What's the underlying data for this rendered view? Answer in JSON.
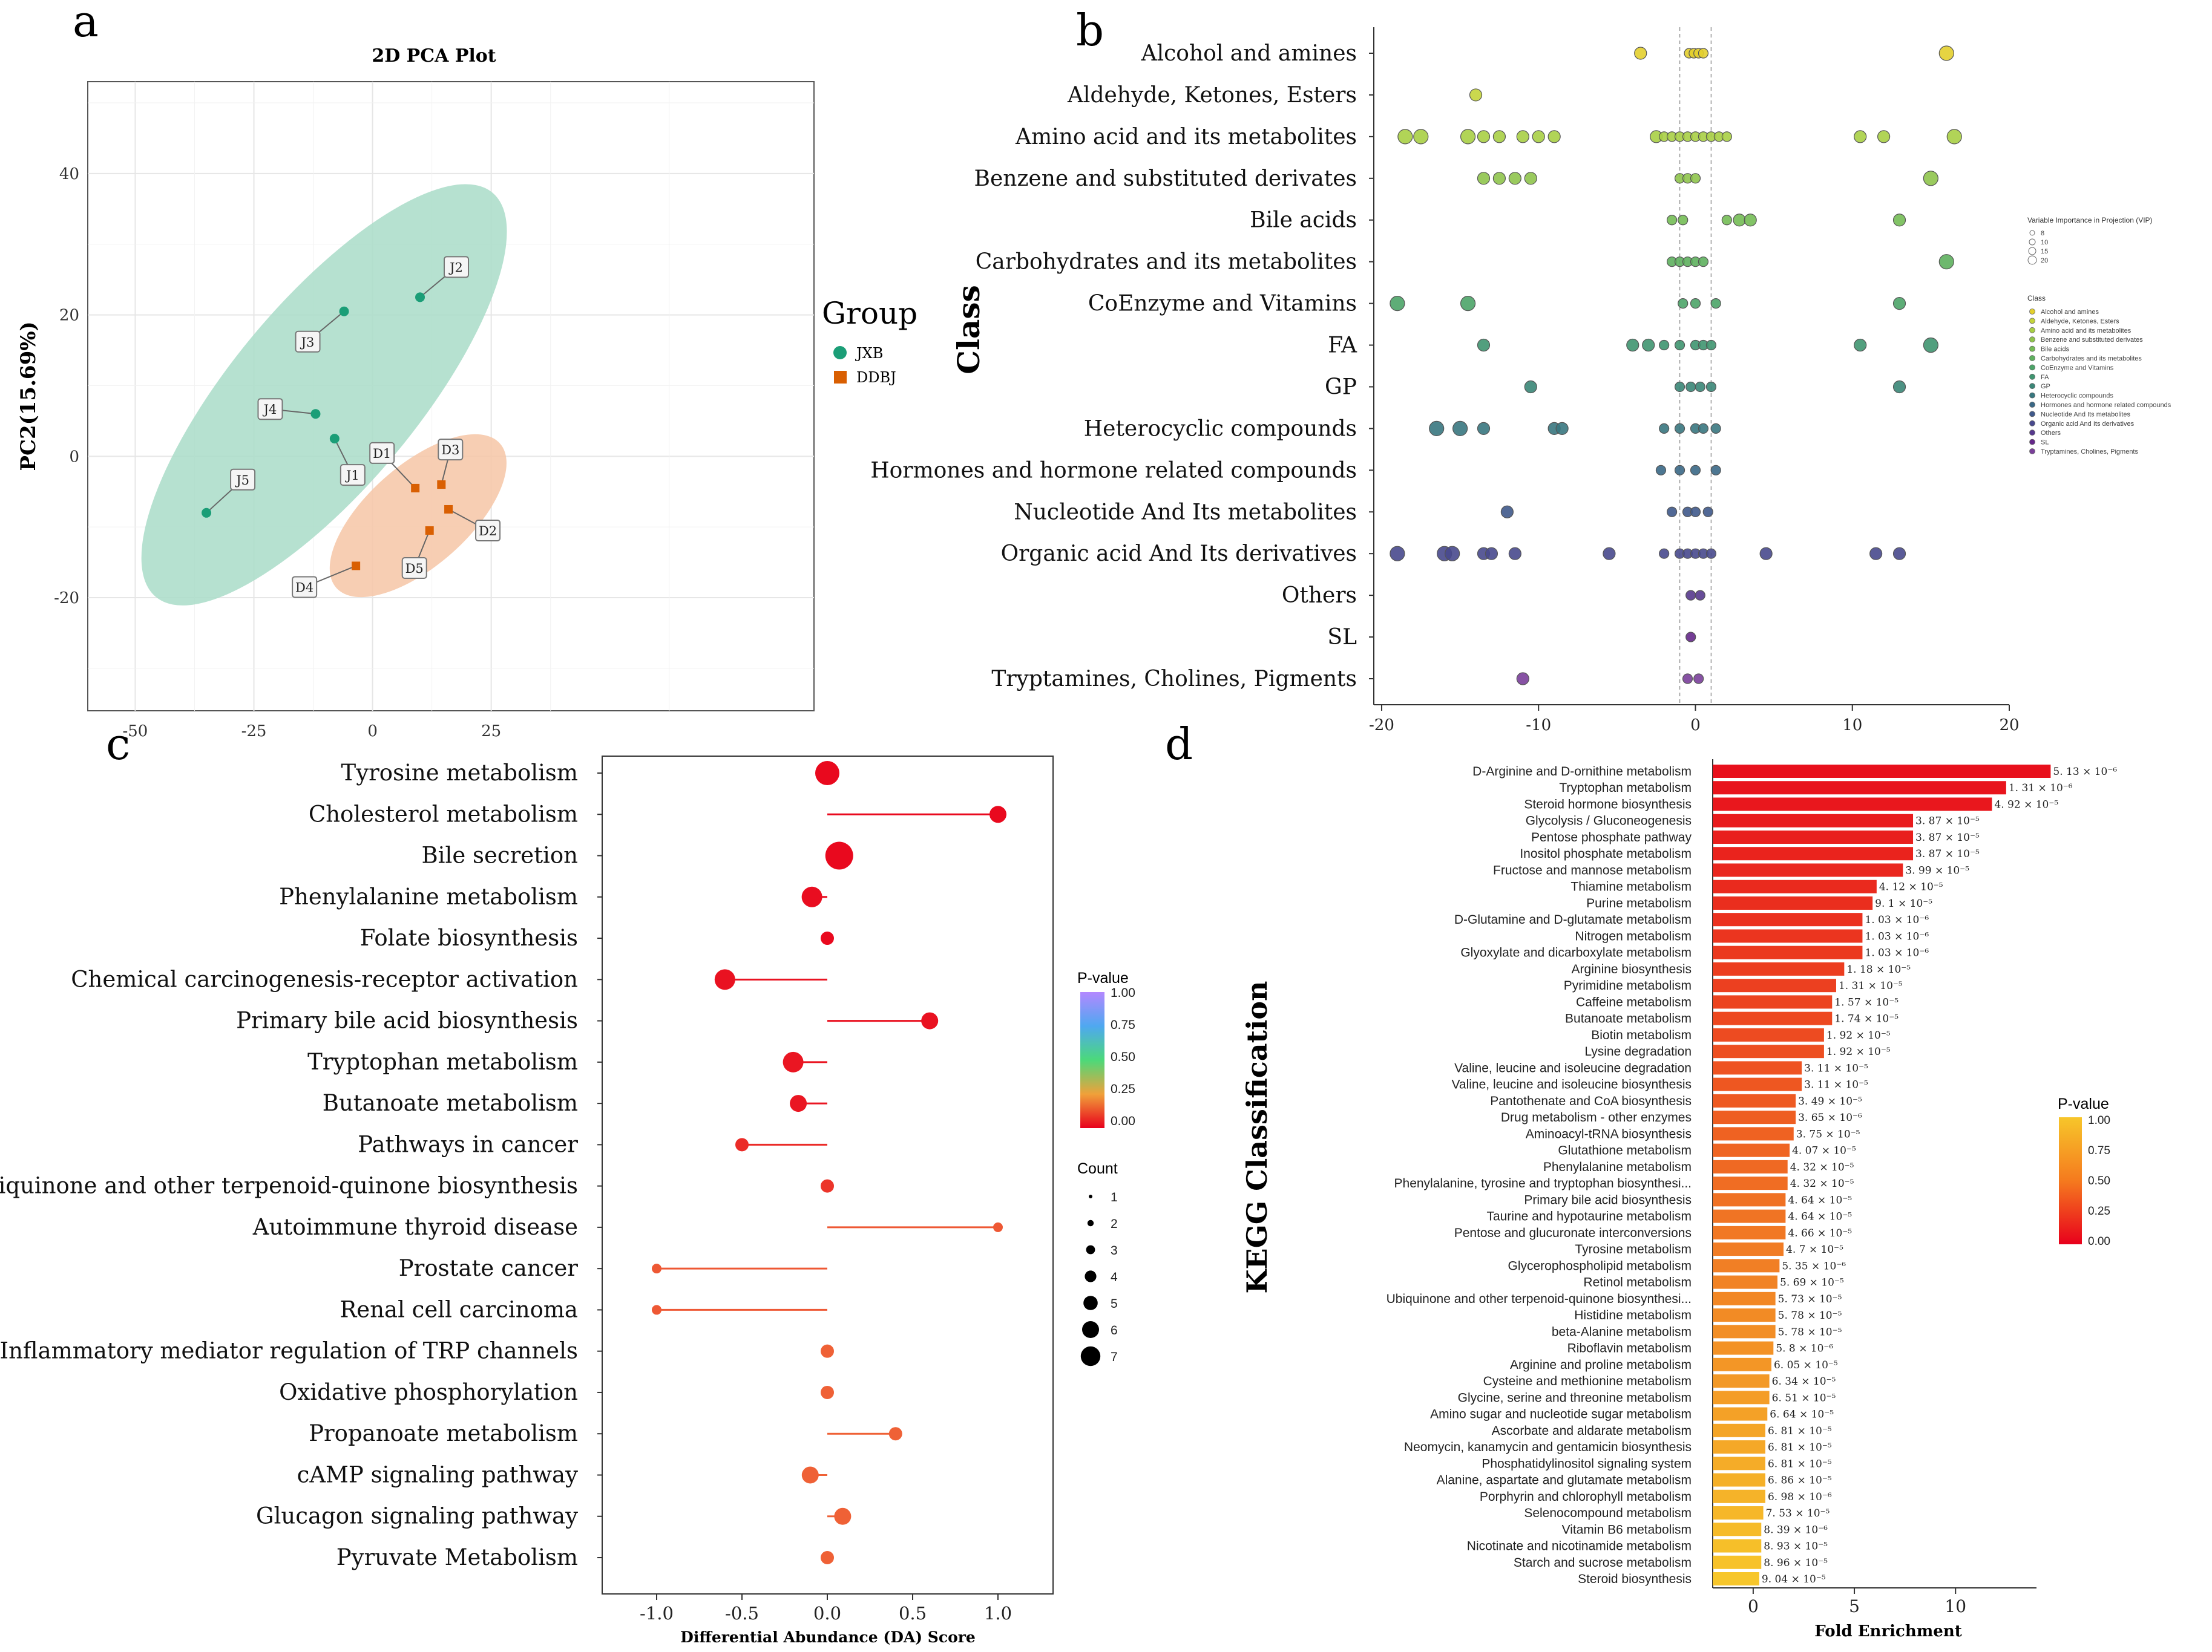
{
  "chart_data": [
    {
      "panel": "a",
      "type": "scatter",
      "title": "2D PCA Plot",
      "xlabel": "",
      "ylabel": "PC2(15.69%)",
      "xlim": [
        -60,
        93
      ],
      "ylim": [
        -36,
        53
      ],
      "xticks": [
        -50,
        -25,
        0,
        25
      ],
      "yticks": [
        -20,
        0,
        20,
        40
      ],
      "grid": true,
      "legend_title": "Group",
      "groups": [
        {
          "name": "JXB",
          "color": "#1b9e77",
          "ellipse_color": "#a9dcc8"
        },
        {
          "name": "DDBJ",
          "color": "#d95f02",
          "ellipse_color": "#f6c6a6"
        }
      ],
      "points": [
        {
          "label": "J1",
          "group": "JXB",
          "x": -8,
          "y": 2.5
        },
        {
          "label": "J2",
          "group": "JXB",
          "x": 10,
          "y": 22.5
        },
        {
          "label": "J3",
          "group": "JXB",
          "x": -6,
          "y": 20.5
        },
        {
          "label": "J4",
          "group": "JXB",
          "x": -12,
          "y": 6
        },
        {
          "label": "J5",
          "group": "JXB",
          "x": -35,
          "y": -8
        },
        {
          "label": "D1",
          "group": "DDBJ",
          "x": 9,
          "y": -4.5
        },
        {
          "label": "D2",
          "group": "DDBJ",
          "x": 16,
          "y": -7.5
        },
        {
          "label": "D3",
          "group": "DDBJ",
          "x": 14.5,
          "y": -4
        },
        {
          "label": "D4",
          "group": "DDBJ",
          "x": -3.5,
          "y": -15.5
        },
        {
          "label": "D5",
          "group": "DDBJ",
          "x": 12,
          "y": -10.5
        }
      ]
    },
    {
      "panel": "b",
      "type": "scatter",
      "title": "",
      "ylabel": "Class",
      "xlim": [
        -21,
        21
      ],
      "xticks": [
        -20,
        -10,
        0,
        10,
        20
      ],
      "legend_title_size": "Variable Importance in Projection (VIP)",
      "categories": [
        "Alcohol and amines",
        "Aldehyde, Ketones, Esters",
        "Amino acid and its metabolites",
        "Benzene and substituted derivates",
        "Bile acids",
        "Carbohydrates and its metabolites",
        "CoEnzyme and Vitamins",
        "FA",
        "GP",
        "Heterocyclic compounds",
        "Hormones and hormone related compounds",
        "Nucleotide And Its metabolites",
        "Organic acid And Its derivatives",
        "Others",
        "SL",
        "Tryptamines, Cholines, Pigments"
      ],
      "colors": [
        "#e3cf2d",
        "#c4d43b",
        "#a8cf45",
        "#8fc44c",
        "#74bc55",
        "#5eb05e",
        "#4ca468",
        "#3f9570",
        "#3a8677",
        "#38777f",
        "#3a6886",
        "#3f598b",
        "#48498d",
        "#56398d",
        "#65288a",
        "#7a3f9a"
      ],
      "points": [
        [
          -3.5,
          -0.4,
          -0.1,
          0.2,
          0.5,
          16
        ],
        [
          -14
        ],
        [
          -18.5,
          -17.5,
          -14.5,
          -13.5,
          -12.5,
          -11,
          -10,
          -9,
          -2.5,
          -2,
          -1.5,
          -1,
          -0.5,
          0,
          0.5,
          1,
          1.5,
          2,
          10.5,
          12,
          16.5
        ],
        [
          -13.5,
          -12.5,
          -11.5,
          -10.5,
          -1,
          -0.5,
          0,
          15
        ],
        [
          -1.5,
          -0.8,
          2,
          2.8,
          3.5,
          13
        ],
        [
          -1.5,
          -1,
          -0.5,
          0,
          0.5,
          16
        ],
        [
          -19,
          -14.5,
          -0.8,
          0,
          1.3,
          13
        ],
        [
          -13.5,
          -4,
          -3,
          -2,
          -1,
          0,
          0.5,
          1,
          10.5,
          15
        ],
        [
          -10.5,
          -1,
          -0.3,
          0.3,
          1,
          13
        ],
        [
          -16.5,
          -15,
          -13.5,
          -9,
          -8.5,
          -2,
          -1,
          0,
          0.5,
          1.3
        ],
        [
          -2.2,
          -1,
          0,
          1.3
        ],
        [
          -12,
          -1.5,
          -0.5,
          0,
          0.8
        ],
        [
          -19,
          -16,
          -15.5,
          -13.5,
          -13,
          -11.5,
          -5.5,
          -2,
          -1,
          -0.5,
          0,
          0.5,
          1,
          4.5,
          11.5,
          13
        ],
        [
          -0.3,
          0.3
        ],
        [
          -0.3
        ],
        [
          -11,
          -0.5,
          0.2
        ]
      ],
      "vline_x": [
        -1,
        1
      ],
      "legend_size_labels": [
        "8",
        "10",
        "15",
        "20"
      ]
    },
    {
      "panel": "c",
      "type": "lollipop",
      "xlabel": "Differential Abundance (DA) Score",
      "xlim": [
        -1.2,
        1.3
      ],
      "xticks": [
        -1.0,
        -0.5,
        0.0,
        0.5,
        1.0
      ],
      "xtick_labels": [
        "-1.0",
        "-0.5",
        "0.0",
        "0.5",
        "1.0"
      ],
      "pvalue_legend_title": "P-value",
      "pvalue_ticks": [
        "1.00",
        "0.75",
        "0.50",
        "0.25",
        "0.00"
      ],
      "count_legend_title": "Count",
      "count_ticks": [
        "1",
        "2",
        "3",
        "4",
        "5",
        "6",
        "7"
      ],
      "categories": [
        "Tyrosine metabolism",
        "Cholesterol metabolism",
        "Bile secretion",
        "Phenylalanine metabolism",
        "Folate biosynthesis",
        "Chemical carcinogenesis-receptor activation",
        "Primary bile acid biosynthesis",
        "Tryptophan metabolism",
        "Butanoate metabolism",
        "Pathways in cancer",
        "Ubiquinone and other terpenoid-quinone biosynthesis",
        "Autoimmune thyroid disease",
        "Prostate cancer",
        "Renal cell carcinoma",
        "Inflammatory mediator regulation of TRP channels",
        "Oxidative phosphorylation",
        "Propanoate metabolism",
        "cAMP signaling pathway",
        "Glucagon signaling pathway",
        "Pyruvate Metabolism"
      ],
      "da_score": [
        0.0,
        1.0,
        0.07,
        -0.09,
        0.0,
        -0.6,
        0.6,
        -0.2,
        -0.17,
        -0.5,
        0.0,
        1.0,
        -1.0,
        -1.0,
        0.0,
        0.0,
        0.4,
        -0.1,
        0.09,
        0.0
      ],
      "count": [
        5,
        3,
        6,
        4,
        2,
        4,
        3,
        4,
        3,
        2,
        2,
        1,
        1,
        1,
        2,
        2,
        2,
        3,
        3,
        2
      ],
      "pvalue": [
        0.02,
        0.02,
        0.02,
        0.03,
        0.02,
        0.04,
        0.04,
        0.05,
        0.05,
        0.1,
        0.12,
        0.2,
        0.2,
        0.2,
        0.22,
        0.22,
        0.22,
        0.22,
        0.22,
        0.22
      ]
    },
    {
      "panel": "d",
      "type": "bar",
      "orientation": "horizontal",
      "ylabel": "KEGG Classification",
      "xlabel": "Fold Enrichment",
      "xlim": [
        -2,
        14
      ],
      "xticks": [
        0,
        5,
        10
      ],
      "pvalue_legend_title": "P-value",
      "pvalue_ticks": [
        "1.00",
        "0.75",
        "0.50",
        "0.25",
        "0.00"
      ],
      "categories": [
        "D-Arginine and D-ornithine metabolism",
        "Tryptophan metabolism",
        "Steroid hormone biosynthesis",
        "Glycolysis / Gluconeogenesis",
        "Pentose phosphate pathway",
        "Inositol phosphate metabolism",
        "Fructose and mannose metabolism",
        "Thiamine metabolism",
        "Purine metabolism",
        "D-Glutamine and D-glutamate metabolism",
        "Nitrogen metabolism",
        "Glyoxylate and dicarboxylate metabolism",
        "Arginine biosynthesis",
        "Pyrimidine metabolism",
        "Caffeine metabolism",
        "Butanoate metabolism",
        "Biotin metabolism",
        "Lysine degradation",
        "Valine, leucine and isoleucine degradation",
        "Valine, leucine and isoleucine biosynthesis",
        "Pantothenate and CoA biosynthesis",
        "Drug metabolism - other enzymes",
        "Aminoacyl-tRNA biosynthesis",
        "Glutathione metabolism",
        "Phenylalanine metabolism",
        "Phenylalanine, tyrosine and tryptophan biosynthesi...",
        "Primary bile acid biosynthesis",
        "Taurine and hypotaurine metabolism",
        "Pentose and glucuronate interconversions",
        "Tyrosine metabolism",
        "Glycerophospholipid metabolism",
        "Retinol metabolism",
        "Ubiquinone and other terpenoid-quinone biosynthesi...",
        "Histidine metabolism",
        "beta-Alanine metabolism",
        "Riboflavin metabolism",
        "Arginine and proline metabolism",
        "Cysteine and methionine metabolism",
        "Glycine, serine and threonine metabolism",
        "Amino sugar and nucleotide sugar metabolism",
        "Ascorbate and aldarate metabolism",
        "Neomycin, kanamycin and gentamicin biosynthesis",
        "Phosphatidylinositol signaling system",
        "Alanine, aspartate and glutamate metabolism",
        "Porphyrin and chlorophyll metabolism",
        "Selenocompound metabolism",
        "Vitamin B6 metabolism",
        "Nicotinate and nicotinamide metabolism",
        "Starch and sucrose metabolism",
        "Steroid biosynthesis"
      ],
      "values": [
        14.7,
        12.5,
        11.8,
        7.9,
        7.9,
        7.9,
        7.4,
        6.1,
        5.9,
        5.4,
        5.4,
        5.4,
        4.5,
        4.1,
        3.9,
        3.9,
        3.5,
        3.5,
        2.4,
        2.4,
        2.1,
        2.1,
        2.0,
        1.8,
        1.7,
        1.7,
        1.6,
        1.6,
        1.6,
        1.5,
        1.3,
        1.2,
        1.1,
        1.1,
        1.1,
        1.0,
        0.9,
        0.8,
        0.8,
        0.7,
        0.6,
        0.6,
        0.6,
        0.6,
        0.6,
        0.5,
        0.4,
        0.4,
        0.4,
        0.3
      ],
      "pvalue": [
        5.13e-06,
        1.31e-06,
        4.92e-05,
        3.87e-05,
        3.87e-05,
        3.87e-05,
        3.99e-05,
        4.12e-05,
        9.1e-05,
        1.03e-06,
        1.03e-06,
        1.03e-06,
        1.18e-05,
        1.31e-05,
        1.57e-05,
        1.74e-05,
        1.92e-05,
        1.92e-05,
        3.11e-05,
        3.11e-05,
        3.49e-05,
        3.65e-06,
        3.75e-05,
        4.07e-05,
        4.32e-05,
        4.32e-05,
        4.64e-05,
        4.64e-05,
        4.66e-05,
        4.7e-05,
        5.35e-06,
        5.69e-05,
        5.73e-05,
        5.78e-05,
        5.78e-05,
        5.8e-06,
        6.05e-05,
        6.34e-05,
        6.51e-05,
        6.64e-05,
        6.81e-05,
        6.81e-05,
        6.81e-05,
        6.86e-05,
        6.98e-06,
        7.53e-05,
        8.39e-06,
        8.93e-05,
        8.96e-05,
        9.04e-05
      ],
      "bar_labels": [
        "5. 13 × 10⁻⁶",
        "1. 31 × 10⁻⁶",
        "4. 92 × 10⁻⁵",
        "3. 87 × 10⁻⁵",
        "3. 87 × 10⁻⁵",
        "3. 87 × 10⁻⁵",
        "3. 99 × 10⁻⁵",
        "4. 12 × 10⁻⁵",
        "9. 1 × 10⁻⁵",
        "1. 03 × 10⁻⁶",
        "1. 03 × 10⁻⁶",
        "1. 03 × 10⁻⁶",
        "1. 18 × 10⁻⁵",
        "1. 31 × 10⁻⁵",
        "1. 57 × 10⁻⁵",
        "1. 74 × 10⁻⁵",
        "1. 92 × 10⁻⁵",
        "1. 92 × 10⁻⁵",
        "3. 11 × 10⁻⁵",
        "3. 11 × 10⁻⁵",
        "3. 49 × 10⁻⁵",
        "3. 65 × 10⁻⁶",
        "3. 75 × 10⁻⁵",
        "4. 07 × 10⁻⁵",
        "4. 32 × 10⁻⁵",
        "4. 32 × 10⁻⁵",
        "4. 64 × 10⁻⁵",
        "4. 64 × 10⁻⁵",
        "4. 66 × 10⁻⁵",
        "4. 7 × 10⁻⁵",
        "5. 35 × 10⁻⁶",
        "5. 69 × 10⁻⁵",
        "5. 73 × 10⁻⁵",
        "5. 78 × 10⁻⁵",
        "5. 78 × 10⁻⁵",
        "5. 8 × 10⁻⁶",
        "6. 05 × 10⁻⁵",
        "6. 34 × 10⁻⁵",
        "6. 51 × 10⁻⁵",
        "6. 64 × 10⁻⁵",
        "6. 81 × 10⁻⁵",
        "6. 81 × 10⁻⁵",
        "6. 81 × 10⁻⁵",
        "6. 86 × 10⁻⁵",
        "6. 98 × 10⁻⁶",
        "7. 53 × 10⁻⁵",
        "8. 39 × 10⁻⁶",
        "8. 93 × 10⁻⁵",
        "8. 96 × 10⁻⁵",
        "9. 04 × 10⁻⁵"
      ]
    }
  ],
  "panel_labels": {
    "a": "a",
    "b": "b",
    "c": "c",
    "d": "d"
  }
}
